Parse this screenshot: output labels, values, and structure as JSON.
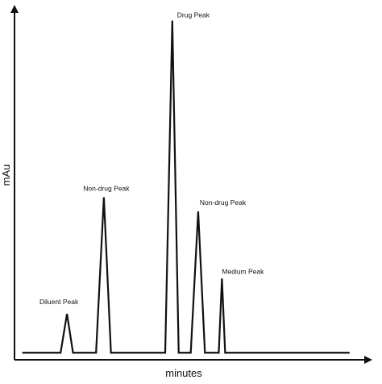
{
  "chart_data": {
    "type": "line",
    "title": "",
    "xlabel": "minutes",
    "ylabel": "mAu",
    "xlim": [
      0,
      100
    ],
    "ylim": [
      0,
      100
    ],
    "grid": false,
    "line_color": "#111111",
    "baseline": 2,
    "peaks": [
      {
        "label": "Diluent Peak",
        "start": 13.0,
        "apex": 14.8,
        "end": 16.5,
        "height": 13
      },
      {
        "label": "Non-drug Peak",
        "start": 23.0,
        "apex": 25.2,
        "end": 27.2,
        "height": 46
      },
      {
        "label": "Drug Peak",
        "start": 42.5,
        "apex": 44.5,
        "end": 46.3,
        "height": 96
      },
      {
        "label": "Non-drug Peak",
        "start": 49.7,
        "apex": 51.8,
        "end": 53.7,
        "height": 42
      },
      {
        "label": "Medium Peak",
        "start": 57.6,
        "apex": 58.5,
        "end": 59.4,
        "height": 23
      }
    ],
    "trace_end": 94.5
  }
}
